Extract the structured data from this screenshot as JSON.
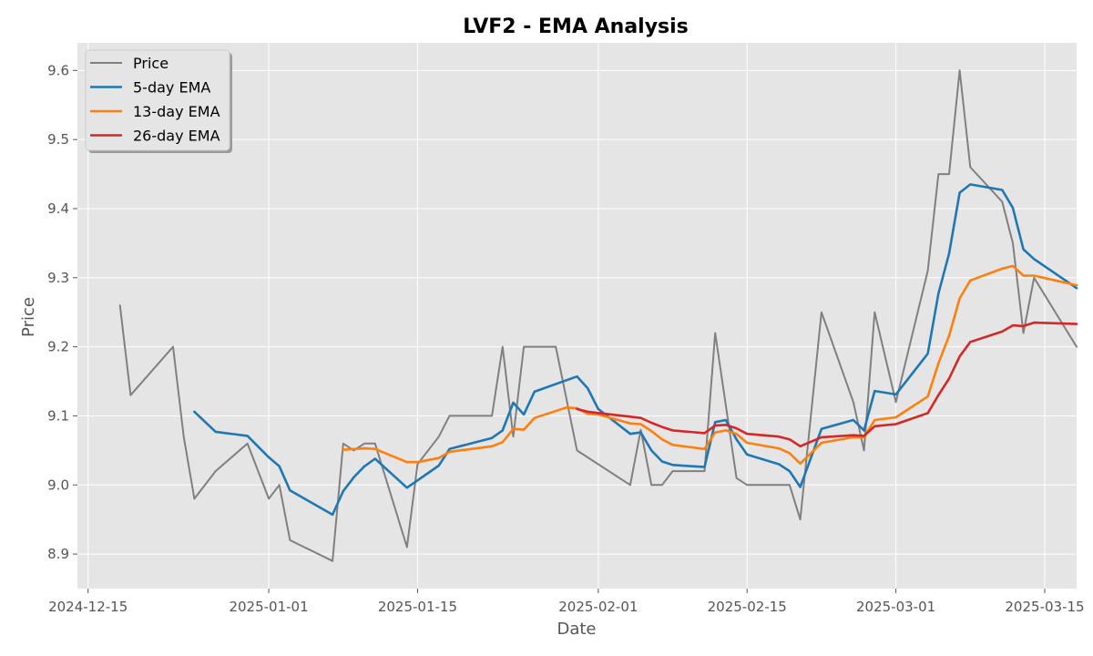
{
  "chart_data": {
    "type": "line",
    "title": "LVF2 - EMA Analysis",
    "xlabel": "Date",
    "ylabel": "Price",
    "x_range": [
      "2024-12-14",
      "2025-03-18"
    ],
    "ylim": [
      8.85,
      9.64
    ],
    "x_ticks": [
      "2024-12-15",
      "2025-01-01",
      "2025-01-15",
      "2025-02-01",
      "2025-02-15",
      "2025-03-01",
      "2025-03-15"
    ],
    "y_ticks": [
      8.9,
      9.0,
      9.1,
      9.2,
      9.3,
      9.4,
      9.5,
      9.6
    ],
    "grid": true,
    "legend_position": "top-left",
    "background": "#e5e5e5",
    "series": [
      {
        "name": "Price",
        "color": "#808080",
        "points": [
          [
            "2024-12-18",
            9.26
          ],
          [
            "2024-12-19",
            9.13
          ],
          [
            "2024-12-23",
            9.2
          ],
          [
            "2024-12-24",
            9.07
          ],
          [
            "2024-12-25",
            8.98
          ],
          [
            "2024-12-27",
            9.02
          ],
          [
            "2024-12-30",
            9.06
          ],
          [
            "2025-01-01",
            8.98
          ],
          [
            "2025-01-02",
            9.0
          ],
          [
            "2025-01-03",
            8.92
          ],
          [
            "2025-01-07",
            8.89
          ],
          [
            "2025-01-08",
            9.06
          ],
          [
            "2025-01-09",
            9.05
          ],
          [
            "2025-01-10",
            9.06
          ],
          [
            "2025-01-11",
            9.06
          ],
          [
            "2025-01-14",
            8.91
          ],
          [
            "2025-01-15",
            9.03
          ],
          [
            "2025-01-17",
            9.07
          ],
          [
            "2025-01-18",
            9.1
          ],
          [
            "2025-01-22",
            9.1
          ],
          [
            "2025-01-23",
            9.2
          ],
          [
            "2025-01-24",
            9.07
          ],
          [
            "2025-01-25",
            9.2
          ],
          [
            "2025-01-28",
            9.2
          ],
          [
            "2025-01-30",
            9.05
          ],
          [
            "2025-02-04",
            9.0
          ],
          [
            "2025-02-05",
            9.08
          ],
          [
            "2025-02-06",
            9.0
          ],
          [
            "2025-02-07",
            9.0
          ],
          [
            "2025-02-08",
            9.02
          ],
          [
            "2025-02-11",
            9.02
          ],
          [
            "2025-02-12",
            9.22
          ],
          [
            "2025-02-14",
            9.01
          ],
          [
            "2025-02-15",
            9.0
          ],
          [
            "2025-02-19",
            9.0
          ],
          [
            "2025-02-20",
            8.95
          ],
          [
            "2025-02-22",
            9.25
          ],
          [
            "2025-02-25",
            9.12
          ],
          [
            "2025-02-26",
            9.05
          ],
          [
            "2025-02-27",
            9.25
          ],
          [
            "2025-03-01",
            9.12
          ],
          [
            "2025-03-04",
            9.31
          ],
          [
            "2025-03-05",
            9.45
          ],
          [
            "2025-03-06",
            9.45
          ],
          [
            "2025-03-07",
            9.6
          ],
          [
            "2025-03-08",
            9.46
          ],
          [
            "2025-03-11",
            9.41
          ],
          [
            "2025-03-12",
            9.35
          ],
          [
            "2025-03-13",
            9.22
          ],
          [
            "2025-03-14",
            9.3
          ],
          [
            "2025-03-18",
            9.2
          ]
        ]
      },
      {
        "name": "5-day EMA",
        "color": "#1f77b4",
        "points": [
          [
            "2024-12-25",
            9.106
          ],
          [
            "2024-12-27",
            9.077
          ],
          [
            "2024-12-30",
            9.071
          ],
          [
            "2025-01-01",
            9.04
          ],
          [
            "2025-01-02",
            9.027
          ],
          [
            "2025-01-03",
            8.992
          ],
          [
            "2025-01-07",
            8.957
          ],
          [
            "2025-01-08",
            8.991
          ],
          [
            "2025-01-09",
            9.011
          ],
          [
            "2025-01-10",
            9.027
          ],
          [
            "2025-01-11",
            9.038
          ],
          [
            "2025-01-14",
            8.996
          ],
          [
            "2025-01-17",
            9.028
          ],
          [
            "2025-01-18",
            9.052
          ],
          [
            "2025-01-22",
            9.068
          ],
          [
            "2025-01-23",
            9.079
          ],
          [
            "2025-01-24",
            9.119
          ],
          [
            "2025-01-25",
            9.102
          ],
          [
            "2025-01-26",
            9.135
          ],
          [
            "2025-01-30",
            9.157
          ],
          [
            "2025-01-31",
            9.14
          ],
          [
            "2025-02-01",
            9.11
          ],
          [
            "2025-02-04",
            9.074
          ],
          [
            "2025-02-05",
            9.076
          ],
          [
            "2025-02-06",
            9.05
          ],
          [
            "2025-02-07",
            9.034
          ],
          [
            "2025-02-08",
            9.029
          ],
          [
            "2025-02-11",
            9.026
          ],
          [
            "2025-02-12",
            9.091
          ],
          [
            "2025-02-13",
            9.094
          ],
          [
            "2025-02-14",
            9.066
          ],
          [
            "2025-02-15",
            9.044
          ],
          [
            "2025-02-18",
            9.03
          ],
          [
            "2025-02-19",
            9.02
          ],
          [
            "2025-02-20",
            8.997
          ],
          [
            "2025-02-22",
            9.081
          ],
          [
            "2025-02-25",
            9.094
          ],
          [
            "2025-02-26",
            9.079
          ],
          [
            "2025-02-27",
            9.136
          ],
          [
            "2025-03-01",
            9.131
          ],
          [
            "2025-03-04",
            9.19
          ],
          [
            "2025-03-05",
            9.277
          ],
          [
            "2025-03-06",
            9.335
          ],
          [
            "2025-03-07",
            9.423
          ],
          [
            "2025-03-08",
            9.435
          ],
          [
            "2025-03-11",
            9.427
          ],
          [
            "2025-03-12",
            9.401
          ],
          [
            "2025-03-13",
            9.341
          ],
          [
            "2025-03-14",
            9.327
          ],
          [
            "2025-03-18",
            9.285
          ]
        ]
      },
      {
        "name": "13-day EMA",
        "color": "#ff7f0e",
        "points": [
          [
            "2025-01-08",
            9.051
          ],
          [
            "2025-01-10",
            9.053
          ],
          [
            "2025-01-11",
            9.052
          ],
          [
            "2025-01-14",
            9.033
          ],
          [
            "2025-01-15",
            9.033
          ],
          [
            "2025-01-17",
            9.039
          ],
          [
            "2025-01-18",
            9.048
          ],
          [
            "2025-01-22",
            9.056
          ],
          [
            "2025-01-23",
            9.062
          ],
          [
            "2025-01-24",
            9.081
          ],
          [
            "2025-01-25",
            9.08
          ],
          [
            "2025-01-26",
            9.097
          ],
          [
            "2025-01-29",
            9.112
          ],
          [
            "2025-01-30",
            9.111
          ],
          [
            "2025-01-31",
            9.103
          ],
          [
            "2025-02-01",
            9.102
          ],
          [
            "2025-02-04",
            9.089
          ],
          [
            "2025-02-05",
            9.088
          ],
          [
            "2025-02-06",
            9.078
          ],
          [
            "2025-02-07",
            9.066
          ],
          [
            "2025-02-08",
            9.058
          ],
          [
            "2025-02-11",
            9.052
          ],
          [
            "2025-02-12",
            9.076
          ],
          [
            "2025-02-13",
            9.079
          ],
          [
            "2025-02-14",
            9.074
          ],
          [
            "2025-02-15",
            9.061
          ],
          [
            "2025-02-18",
            9.053
          ],
          [
            "2025-02-19",
            9.046
          ],
          [
            "2025-02-20",
            9.031
          ],
          [
            "2025-02-22",
            9.061
          ],
          [
            "2025-02-25",
            9.069
          ],
          [
            "2025-02-26",
            9.069
          ],
          [
            "2025-02-27",
            9.094
          ],
          [
            "2025-03-01",
            9.098
          ],
          [
            "2025-03-04",
            9.128
          ],
          [
            "2025-03-05",
            9.176
          ],
          [
            "2025-03-06",
            9.216
          ],
          [
            "2025-03-07",
            9.27
          ],
          [
            "2025-03-08",
            9.296
          ],
          [
            "2025-03-11",
            9.313
          ],
          [
            "2025-03-12",
            9.317
          ],
          [
            "2025-03-13",
            9.303
          ],
          [
            "2025-03-14",
            9.303
          ],
          [
            "2025-03-18",
            9.289
          ]
        ]
      },
      {
        "name": "26-day EMA",
        "color": "#d62728",
        "points": [
          [
            "2025-01-30",
            9.11
          ],
          [
            "2025-01-31",
            9.106
          ],
          [
            "2025-02-05",
            9.097
          ],
          [
            "2025-02-06",
            9.09
          ],
          [
            "2025-02-07",
            9.084
          ],
          [
            "2025-02-08",
            9.079
          ],
          [
            "2025-02-11",
            9.075
          ],
          [
            "2025-02-12",
            9.086
          ],
          [
            "2025-02-13",
            9.087
          ],
          [
            "2025-02-14",
            9.082
          ],
          [
            "2025-02-15",
            9.074
          ],
          [
            "2025-02-18",
            9.07
          ],
          [
            "2025-02-19",
            9.066
          ],
          [
            "2025-02-20",
            9.056
          ],
          [
            "2025-02-22",
            9.069
          ],
          [
            "2025-02-25",
            9.072
          ],
          [
            "2025-02-26",
            9.071
          ],
          [
            "2025-02-27",
            9.085
          ],
          [
            "2025-03-01",
            9.088
          ],
          [
            "2025-03-04",
            9.104
          ],
          [
            "2025-03-05",
            9.13
          ],
          [
            "2025-03-06",
            9.154
          ],
          [
            "2025-03-07",
            9.186
          ],
          [
            "2025-03-08",
            9.207
          ],
          [
            "2025-03-11",
            9.222
          ],
          [
            "2025-03-12",
            9.231
          ],
          [
            "2025-03-13",
            9.23
          ],
          [
            "2025-03-14",
            9.235
          ],
          [
            "2025-03-18",
            9.233
          ]
        ]
      }
    ]
  }
}
